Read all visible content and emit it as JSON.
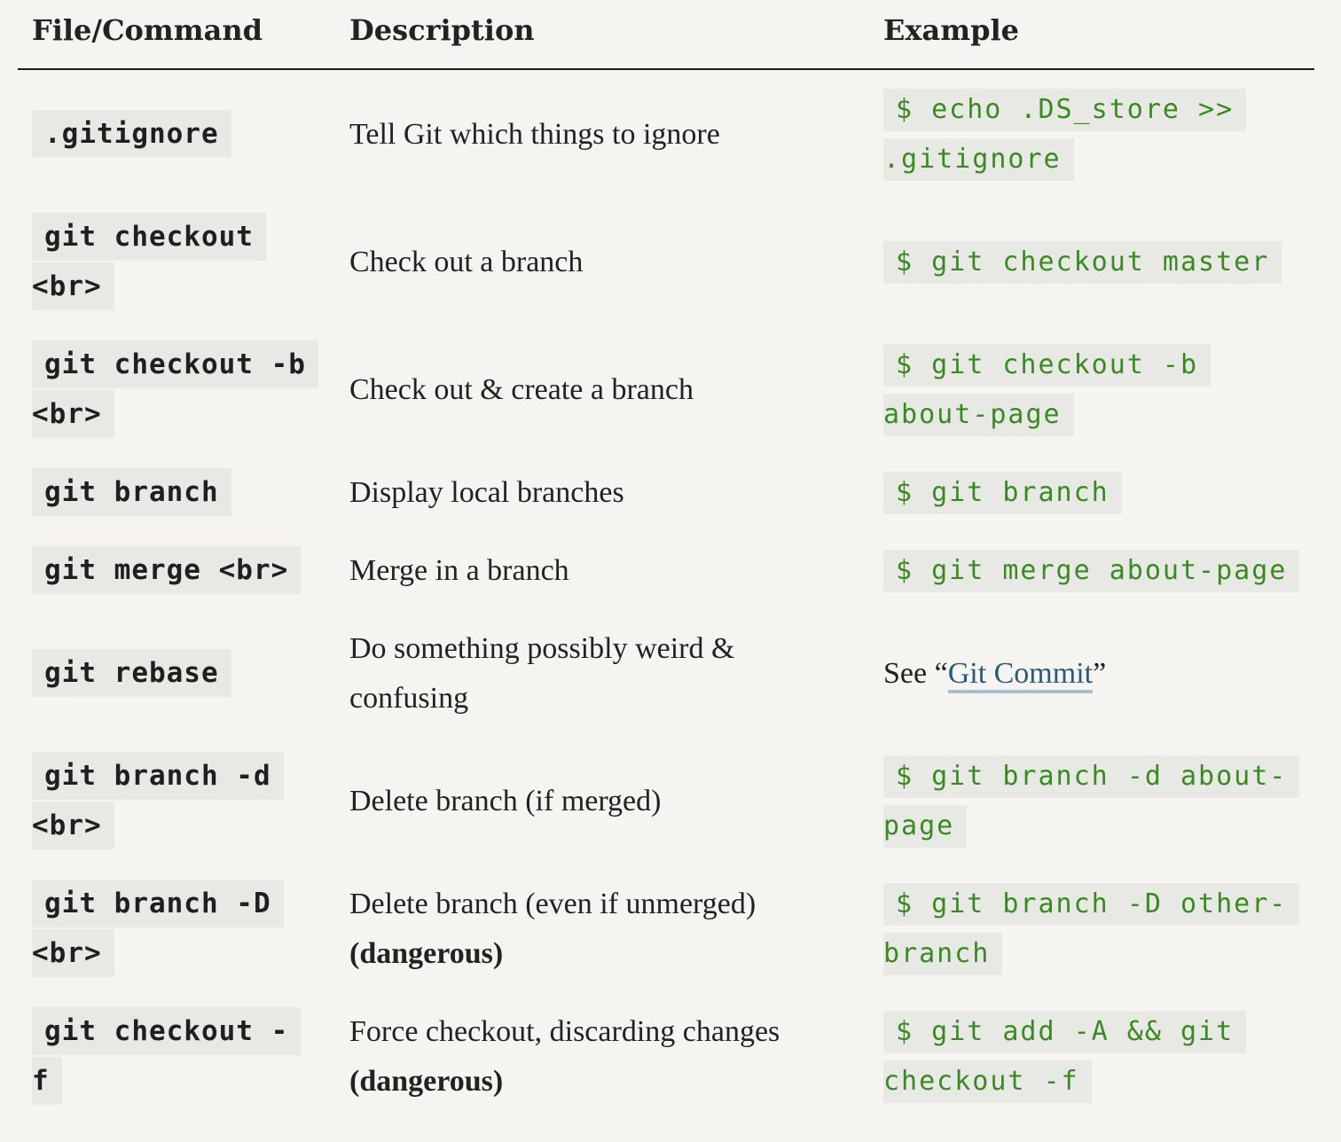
{
  "table": {
    "headers": {
      "command": "File/Command",
      "description": "Description",
      "example": "Example"
    },
    "rows": [
      {
        "command": [
          ".gitignore"
        ],
        "description": [
          "Tell Git which things to ignore"
        ],
        "example": [
          "$ echo .DS_store >>",
          ".gitignore"
        ]
      },
      {
        "command": [
          "git checkout",
          "<br>"
        ],
        "description": [
          "Check out a branch"
        ],
        "example": [
          "$ git checkout master"
        ]
      },
      {
        "command": [
          "git checkout -b",
          "<br>"
        ],
        "description": [
          "Check out & create a branch"
        ],
        "example": [
          "$ git checkout -b",
          "about-page"
        ]
      },
      {
        "command": [
          "git branch"
        ],
        "description": [
          "Display local branches"
        ],
        "example": [
          "$ git branch"
        ]
      },
      {
        "command": [
          "git merge <br>"
        ],
        "description": [
          "Merge in a branch"
        ],
        "example": [
          "$ git merge about-page"
        ]
      },
      {
        "command": [
          "git rebase"
        ],
        "description": [
          "Do something possibly weird &",
          "confusing"
        ],
        "example_text": {
          "prefix": "See “",
          "link": "Git Commit",
          "suffix": "”"
        }
      },
      {
        "command": [
          "git branch -d",
          "<br>"
        ],
        "description": [
          "Delete branch (if merged)"
        ],
        "example": [
          "$ git branch -d about-",
          "page"
        ]
      },
      {
        "command": [
          "git branch -D",
          "<br>"
        ],
        "description": [
          "Delete branch (even if unmerged)"
        ],
        "description_bold": "(dangerous)",
        "example": [
          "$ git branch -D other-",
          "branch"
        ]
      },
      {
        "command": [
          "git checkout -",
          "f"
        ],
        "description": [
          "Force checkout, discarding changes"
        ],
        "description_bold": "(dangerous)",
        "example": [
          "$ git add -A && git",
          "checkout -f"
        ]
      }
    ]
  }
}
